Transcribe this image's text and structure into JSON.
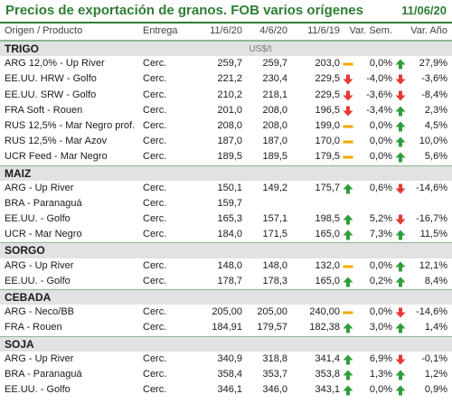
{
  "header": {
    "title": "Precios de exportación de granos. FOB varios orígenes",
    "date": "11/06/20"
  },
  "columns": {
    "origin": "Origen / Producto",
    "delivery": "Entrega",
    "d1": "11/6/20",
    "d2": "4/6/20",
    "d3": "11/6/19",
    "week": "Var. Sem.",
    "year": "Var. Año"
  },
  "colors": {
    "up": "#2e9e3a",
    "down": "#e53935",
    "flat": "#f2a900",
    "accent": "#2e7d32"
  },
  "sections": [
    {
      "name": "TRIGO",
      "unit": "US$/t",
      "rows": [
        {
          "product": "ARG 12,0% - Up River",
          "delivery": "Cerc.",
          "v1": "259,7",
          "v2": "259,7",
          "v3": "203,0",
          "i1": "flat",
          "week": "0,0%",
          "i2": "up",
          "year": "27,9%"
        },
        {
          "product": "EE.UU. HRW - Golfo",
          "delivery": "Cerc.",
          "v1": "221,2",
          "v2": "230,4",
          "v3": "229,5",
          "i1": "down",
          "week": "-4,0%",
          "i2": "down",
          "year": "-3,6%"
        },
        {
          "product": "EE.UU. SRW - Golfo",
          "delivery": "Cerc.",
          "v1": "210,2",
          "v2": "218,1",
          "v3": "229,5",
          "i1": "down",
          "week": "-3,6%",
          "i2": "down",
          "year": "-8,4%"
        },
        {
          "product": "FRA Soft - Rouen",
          "delivery": "Cerc.",
          "v1": "201,0",
          "v2": "208,0",
          "v3": "196,5",
          "i1": "down",
          "week": "-3,4%",
          "i2": "up",
          "year": "2,3%"
        },
        {
          "product": "RUS 12,5% - Mar Negro prof.",
          "delivery": "Cerc.",
          "v1": "208,0",
          "v2": "208,0",
          "v3": "199,0",
          "i1": "flat",
          "week": "0,0%",
          "i2": "up",
          "year": "4,5%"
        },
        {
          "product": "RUS 12,5% - Mar Azov",
          "delivery": "Cerc.",
          "v1": "187,0",
          "v2": "187,0",
          "v3": "170,0",
          "i1": "flat",
          "week": "0,0%",
          "i2": "up",
          "year": "10,0%"
        },
        {
          "product": "UCR Feed - Mar Negro",
          "delivery": "Cerc.",
          "v1": "189,5",
          "v2": "189,5",
          "v3": "179,5",
          "i1": "flat",
          "week": "0,0%",
          "i2": "up",
          "year": "5,6%"
        }
      ]
    },
    {
      "name": "MAIZ",
      "unit": "",
      "rows": [
        {
          "product": "ARG - Up River",
          "delivery": "Cerc.",
          "v1": "150,1",
          "v2": "149,2",
          "v3": "175,7",
          "i1": "up",
          "week": "0,6%",
          "i2": "down",
          "year": "-14,6%"
        },
        {
          "product": "BRA - Paranaguá",
          "delivery": "Cerc.",
          "v1": "159,7",
          "v2": "",
          "v3": "",
          "i1": "",
          "week": "",
          "i2": "",
          "year": ""
        },
        {
          "product": "EE.UU. - Golfo",
          "delivery": "Cerc.",
          "v1": "165,3",
          "v2": "157,1",
          "v3": "198,5",
          "i1": "up",
          "week": "5,2%",
          "i2": "down",
          "year": "-16,7%"
        },
        {
          "product": "UCR - Mar Negro",
          "delivery": "Cerc.",
          "v1": "184,0",
          "v2": "171,5",
          "v3": "165,0",
          "i1": "up",
          "week": "7,3%",
          "i2": "up",
          "year": "11,5%"
        }
      ]
    },
    {
      "name": "SORGO",
      "unit": "",
      "rows": [
        {
          "product": "ARG - Up River",
          "delivery": "Cerc.",
          "v1": "148,0",
          "v2": "148,0",
          "v3": "132,0",
          "i1": "flat",
          "week": "0,0%",
          "i2": "up",
          "year": "12,1%"
        },
        {
          "product": "EE.UU. - Golfo",
          "delivery": "Cerc.",
          "v1": "178,7",
          "v2": "178,3",
          "v3": "165,0",
          "i1": "up",
          "week": "0,2%",
          "i2": "up",
          "year": "8,4%"
        }
      ]
    },
    {
      "name": "CEBADA",
      "unit": "",
      "rows": [
        {
          "product": "ARG - Neco/BB",
          "delivery": "Cerc.",
          "v1": "205,00",
          "v2": "205,00",
          "v3": "240,00",
          "i1": "flat",
          "week": "0,0%",
          "i2": "down",
          "year": "-14,6%"
        },
        {
          "product": "FRA - Rouen",
          "delivery": "Cerc.",
          "v1": "184,91",
          "v2": "179,57",
          "v3": "182,38",
          "i1": "up",
          "week": "3,0%",
          "i2": "up",
          "year": "1,4%"
        }
      ]
    },
    {
      "name": "SOJA",
      "unit": "",
      "rows": [
        {
          "product": "ARG - Up River",
          "delivery": "Cerc.",
          "v1": "340,9",
          "v2": "318,8",
          "v3": "341,4",
          "i1": "up",
          "week": "6,9%",
          "i2": "down",
          "year": "-0,1%"
        },
        {
          "product": "BRA - Paranaguá",
          "delivery": "Cerc.",
          "v1": "358,4",
          "v2": "353,7",
          "v3": "353,8",
          "i1": "up",
          "week": "1,3%",
          "i2": "up",
          "year": "1,2%"
        },
        {
          "product": "EE.UU. - Golfo",
          "delivery": "Cerc.",
          "v1": "346,1",
          "v2": "346,0",
          "v3": "343,1",
          "i1": "up",
          "week": "0,0%",
          "i2": "up",
          "year": "0,9%"
        }
      ]
    }
  ]
}
